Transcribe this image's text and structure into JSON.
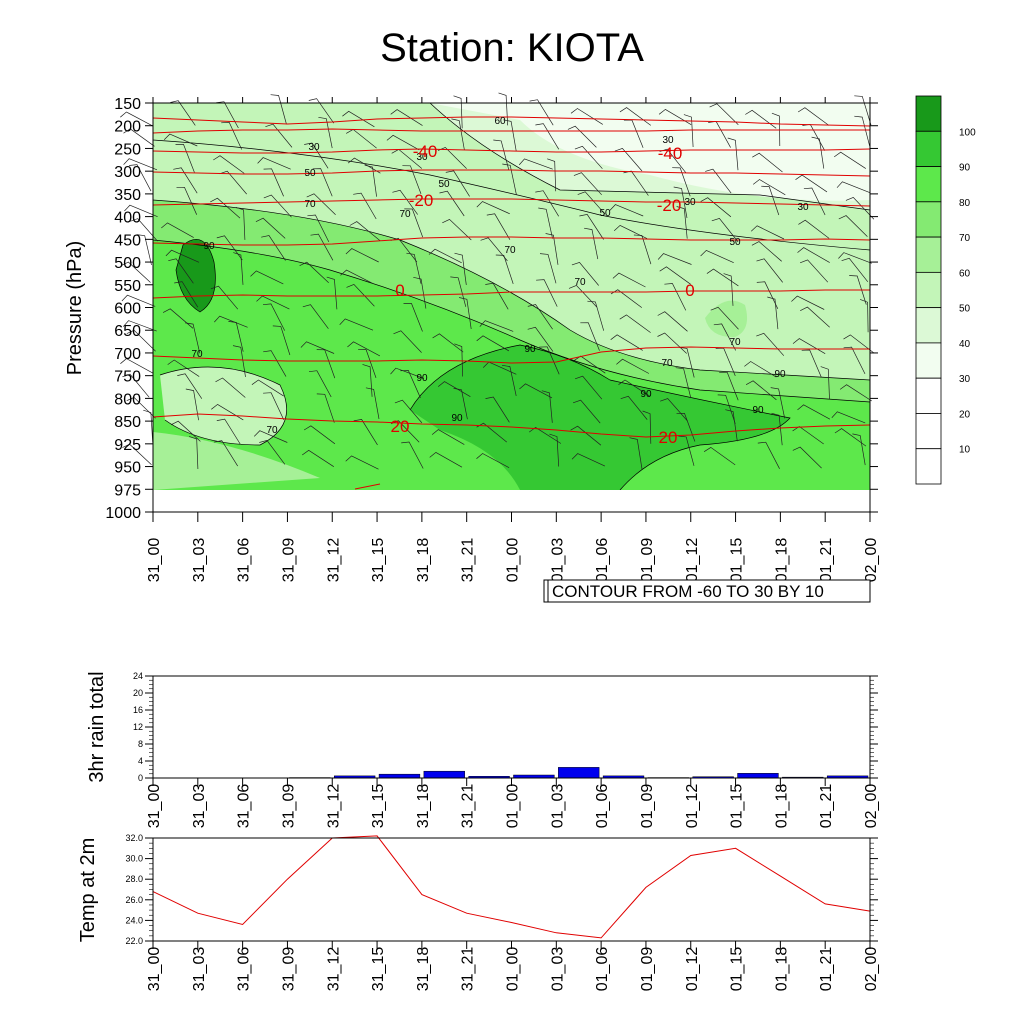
{
  "title": "Station: KIOTA",
  "time_labels": [
    "31_00",
    "31_03",
    "31_06",
    "31_09",
    "31_12",
    "31_15",
    "31_18",
    "31_21",
    "01_00",
    "01_03",
    "01_06",
    "01_09",
    "01_12",
    "01_15",
    "01_18",
    "01_21",
    "02_00"
  ],
  "chart_data": [
    {
      "type": "heatmap",
      "ylabel": "Pressure (hPa)",
      "y_ticks": [
        150,
        200,
        250,
        300,
        350,
        400,
        450,
        500,
        550,
        600,
        650,
        700,
        750,
        800,
        850,
        925,
        950,
        975,
        1000
      ],
      "colorbar": {
        "levels": [
          10,
          20,
          30,
          40,
          50,
          60,
          70,
          80,
          90,
          100
        ],
        "colors": [
          "#ffffff",
          "#ffffff",
          "#f2fdf0",
          "#dcf9d6",
          "#c3f5b8",
          "#a6f097",
          "#84ea72",
          "#5de84b",
          "#35c833",
          "#18991a"
        ]
      },
      "humidity_contour_labels": [
        "30",
        "30",
        "30",
        "30",
        "30",
        "50",
        "50",
        "50",
        "50",
        "60",
        "70",
        "70",
        "70",
        "70",
        "70",
        "70",
        "70",
        "70",
        "90",
        "90",
        "90",
        "90",
        "90",
        "90",
        "90"
      ],
      "temperature_contour_labels": [
        "-40",
        "-40",
        "-20",
        "-20",
        "0",
        "0",
        "20",
        "20"
      ],
      "info_box": "CONTOUR FROM -60 TO 30 BY 10",
      "colors": {
        "temperature_contour": "#e00000",
        "humidity_contour": "#000000"
      }
    },
    {
      "type": "bar",
      "ylabel": "3hr rain total",
      "categories": [
        "31_00",
        "31_03",
        "31_06",
        "31_09",
        "31_12",
        "31_15",
        "31_18",
        "31_21",
        "01_00",
        "01_03",
        "01_06",
        "01_09",
        "01_12",
        "01_15",
        "01_18",
        "01_21"
      ],
      "values": [
        0,
        0,
        0,
        0.1,
        0.5,
        0.9,
        1.6,
        0.4,
        0.7,
        2.5,
        0.5,
        0.1,
        0.3,
        1.1,
        0.2,
        0.5
      ],
      "ylim": [
        0,
        24
      ],
      "y_ticks": [
        0,
        4,
        8,
        12,
        16,
        20,
        24
      ],
      "color": "#0000ee"
    },
    {
      "type": "line",
      "ylabel": "Temp at 2m",
      "x": [
        "31_00",
        "31_03",
        "31_06",
        "31_09",
        "31_12",
        "31_15",
        "31_18",
        "31_21",
        "01_00",
        "01_03",
        "01_06",
        "01_09",
        "01_12",
        "01_15",
        "01_18",
        "01_21",
        "02_00"
      ],
      "values": [
        26.8,
        24.7,
        23.6,
        28.0,
        32.0,
        32.2,
        26.5,
        24.7,
        23.8,
        22.8,
        22.3,
        27.2,
        30.3,
        31.0,
        28.3,
        25.6,
        24.9
      ],
      "ylim": [
        22.0,
        32.0
      ],
      "y_ticks": [
        "22.0",
        "24.0",
        "26.0",
        "28.0",
        "30.0",
        "32.0"
      ],
      "color": "#e00000"
    }
  ]
}
